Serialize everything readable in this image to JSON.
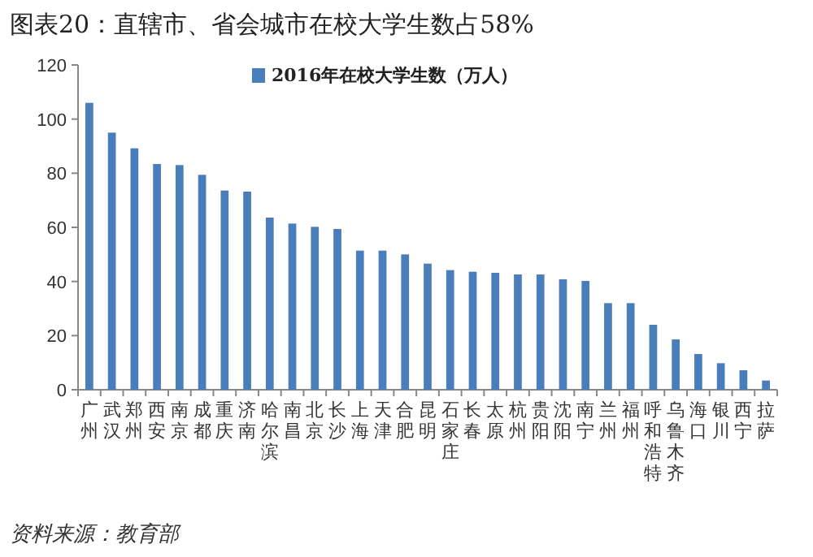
{
  "chart_data": {
    "type": "bar",
    "title": "图表20：直辖市、省会城市在校大学生数占58%",
    "categories": [
      "广州",
      "武汉",
      "郑州",
      "西安",
      "南京",
      "成都",
      "重庆",
      "济南",
      "哈尔滨",
      "南昌",
      "北京",
      "长沙",
      "上海",
      "天津",
      "合肥",
      "昆明",
      "石家庄",
      "长春",
      "太原",
      "杭州",
      "贵阳",
      "沈阳",
      "南宁",
      "兰州",
      "福州",
      "呼和浩特",
      "乌鲁木齐",
      "海口",
      "银川",
      "西宁",
      "拉萨"
    ],
    "series": [
      {
        "name": "2016年在校大学生数（万人）",
        "color": "#4a7ebb",
        "values": [
          106,
          95,
          89.2,
          83.4,
          83,
          79.4,
          73.6,
          73.2,
          63.6,
          61.4,
          60.2,
          59.4,
          51.4,
          51.4,
          50,
          46.6,
          44.2,
          43.6,
          43.2,
          42.6,
          42.6,
          40.8,
          40.2,
          32,
          32,
          24,
          18.6,
          13.2,
          9.8,
          7.2,
          3.4
        ]
      }
    ],
    "ylim": [
      0,
      120
    ],
    "yticks": [
      0,
      20,
      40,
      60,
      80,
      100,
      120
    ],
    "legend": "top",
    "grid": false,
    "annotations": [
      "资料来源：教育部"
    ]
  }
}
